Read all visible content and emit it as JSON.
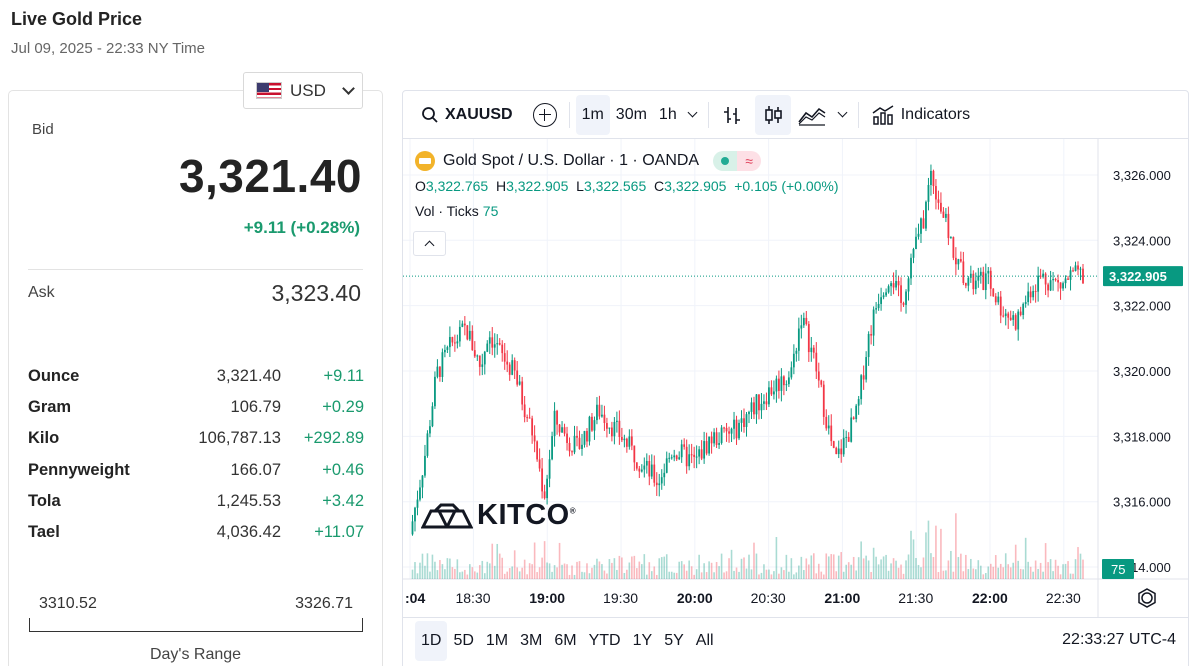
{
  "page": {
    "title": "Live Gold Price",
    "subtitle": "Jul 09, 2025 - 22:33 NY Time"
  },
  "currency": {
    "label": "USD",
    "flag": "us-flag-icon"
  },
  "price": {
    "bid_label": "Bid",
    "bid": "3,321.40",
    "change": "+9.11 (+0.28%)",
    "ask_label": "Ask",
    "ask": "3,323.40",
    "units": [
      {
        "name": "Ounce",
        "price": "3,321.40",
        "change": "+9.11"
      },
      {
        "name": "Gram",
        "price": "106.79",
        "change": "+0.29"
      },
      {
        "name": "Kilo",
        "price": "106,787.13",
        "change": "+292.89"
      },
      {
        "name": "Pennyweight",
        "price": "166.07",
        "change": "+0.46"
      },
      {
        "name": "Tola",
        "price": "1,245.53",
        "change": "+3.42"
      },
      {
        "name": "Tael",
        "price": "4,036.42",
        "change": "+11.07"
      }
    ],
    "range_low": "3310.52",
    "range_high": "3326.71",
    "range_label": "Day's Range"
  },
  "chart": {
    "symbol": "XAUUSD",
    "intervals": [
      "1m",
      "30m",
      "1h"
    ],
    "active_interval": "1m",
    "indicators_label": "Indicators",
    "series_title": "Gold Spot",
    "series_quote": "U.S. Dollar",
    "series_interval": "1",
    "series_source": "OANDA",
    "ohlc": {
      "o": "3,322.765",
      "h": "3,322.905",
      "l": "3,322.565",
      "c": "3,322.905",
      "chg": "+0.105 (+0.00%)"
    },
    "vol_label": "Vol · Ticks",
    "vol_value": "75",
    "last_price_label": "3,322.905",
    "vol_badge": "75",
    "brand": "KITCO",
    "ranges": [
      "1D",
      "5D",
      "1M",
      "3M",
      "6M",
      "YTD",
      "1Y",
      "5Y",
      "All"
    ],
    "active_range": "1D",
    "clock": "22:33:27 UTC-4",
    "colors": {
      "up": "#089981",
      "down": "#f23645",
      "grid": "#f0f3fa"
    }
  },
  "chart_data": {
    "type": "candlestick",
    "x_ticks": [
      ":04",
      "18:30",
      "19:00",
      "19:30",
      "20:00",
      "20:30",
      "21:00",
      "21:30",
      "22:00",
      "22:30"
    ],
    "x_ticks_bold": [
      ":04",
      "19:00",
      "20:00",
      "21:00",
      "22:00"
    ],
    "y_ticks": [
      "3,326.000",
      "3,324.000",
      "3,322.000",
      "3,320.000",
      "3,318.000",
      "3,316.000",
      "3,314.000"
    ],
    "ylim": [
      3312.9,
      3327.1
    ],
    "last_price": 3322.905,
    "close_path": [
      [
        18.07,
        3315.0
      ],
      [
        18.17,
        3317.4
      ],
      [
        18.25,
        3319.9
      ],
      [
        18.35,
        3320.8
      ],
      [
        18.45,
        3321.3
      ],
      [
        18.55,
        3320.1
      ],
      [
        18.6,
        3321.2
      ],
      [
        18.7,
        3320.4
      ],
      [
        18.78,
        3319.9
      ],
      [
        18.9,
        3318.1
      ],
      [
        18.98,
        3316.2
      ],
      [
        19.05,
        3318.5
      ],
      [
        19.2,
        3317.6
      ],
      [
        19.35,
        3318.8
      ],
      [
        19.5,
        3318.0
      ],
      [
        19.65,
        3317.1
      ],
      [
        19.75,
        3316.6
      ],
      [
        19.85,
        3317.6
      ],
      [
        20.0,
        3317.2
      ],
      [
        20.1,
        3317.9
      ],
      [
        20.25,
        3318.1
      ],
      [
        20.4,
        3318.9
      ],
      [
        20.55,
        3319.6
      ],
      [
        20.65,
        3319.9
      ],
      [
        20.72,
        3321.7
      ],
      [
        20.8,
        3320.5
      ],
      [
        20.88,
        3318.8
      ],
      [
        20.95,
        3317.2
      ],
      [
        21.02,
        3317.9
      ],
      [
        21.1,
        3318.7
      ],
      [
        21.17,
        3320.9
      ],
      [
        21.25,
        3322.4
      ],
      [
        21.33,
        3323.0
      ],
      [
        21.4,
        3322.0
      ],
      [
        21.47,
        3323.6
      ],
      [
        21.55,
        3324.6
      ],
      [
        21.6,
        3326.1
      ],
      [
        21.68,
        3324.8
      ],
      [
        21.77,
        3323.4
      ],
      [
        21.88,
        3322.6
      ],
      [
        21.98,
        3322.8
      ],
      [
        22.08,
        3321.9
      ],
      [
        22.18,
        3321.5
      ],
      [
        22.27,
        3322.5
      ],
      [
        22.35,
        3322.9
      ],
      [
        22.48,
        3322.6
      ],
      [
        22.55,
        3322.9
      ]
    ]
  }
}
